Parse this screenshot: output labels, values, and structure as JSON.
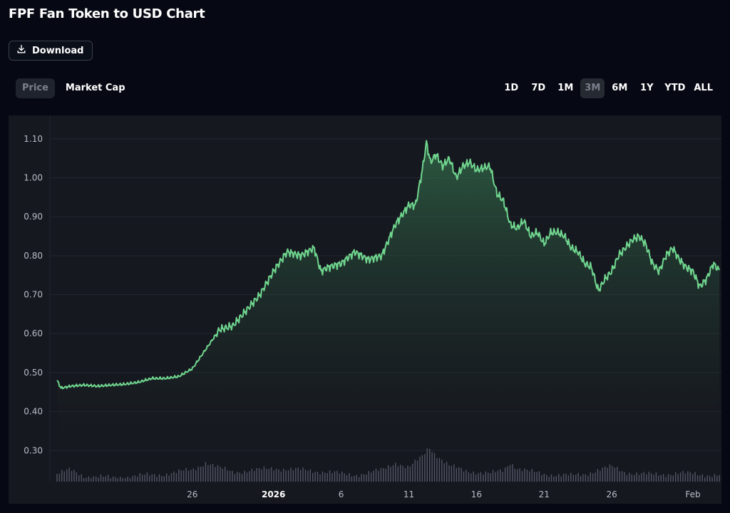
{
  "header": {
    "title": "FPF Fan Token to USD Chart",
    "download_label": "Download"
  },
  "metric_tabs": [
    {
      "label": "Price",
      "active": true
    },
    {
      "label": "Market Cap",
      "active": false
    }
  ],
  "range_tabs": [
    {
      "label": "1D",
      "active": false
    },
    {
      "label": "7D",
      "active": false
    },
    {
      "label": "1M",
      "active": false
    },
    {
      "label": "3M",
      "active": true
    },
    {
      "label": "6M",
      "active": false
    },
    {
      "label": "1Y",
      "active": false
    },
    {
      "label": "YTD",
      "active": false
    },
    {
      "label": "ALL",
      "active": false
    }
  ],
  "colors": {
    "line": "#6fd58e",
    "fill_top": "#3f8f5c",
    "fill_bottom": "#16181f",
    "volume": "#5d6274",
    "grid": "#232630",
    "panel": "#16181f"
  },
  "chart_data": {
    "type": "area",
    "title": "FPF Fan Token to USD Chart",
    "xlabel": "",
    "ylabel": "",
    "ylim": [
      0.22,
      1.16
    ],
    "xlim": [
      0,
      90
    ],
    "grid": true,
    "yticks": [
      "0.30",
      "0.40",
      "0.50",
      "0.60",
      "0.70",
      "0.80",
      "0.90",
      "1.00",
      "1.10"
    ],
    "ytick_values": [
      0.3,
      0.4,
      0.5,
      0.6,
      0.7,
      0.8,
      0.9,
      1.0,
      1.1
    ],
    "xticks": [
      {
        "label": "26",
        "x": 10,
        "bold": false
      },
      {
        "label": "2026",
        "x": 16,
        "bold": true
      },
      {
        "label": "6",
        "x": 21,
        "bold": false
      },
      {
        "label": "11",
        "x": 26,
        "bold": false
      },
      {
        "label": "16",
        "x": 31,
        "bold": false
      },
      {
        "label": "21",
        "x": 36,
        "bold": false
      },
      {
        "label": "26",
        "x": 41,
        "bold": false
      },
      {
        "label": "Feb",
        "x": 47,
        "bold": false
      }
    ],
    "price": [
      [
        0,
        0.48
      ],
      [
        0.3,
        0.46
      ],
      [
        1,
        0.465
      ],
      [
        2,
        0.468
      ],
      [
        3,
        0.465
      ],
      [
        4,
        0.468
      ],
      [
        5,
        0.47
      ],
      [
        6,
        0.475
      ],
      [
        7,
        0.485
      ],
      [
        8,
        0.485
      ],
      [
        9,
        0.49
      ],
      [
        10,
        0.51
      ],
      [
        11,
        0.56
      ],
      [
        12,
        0.61
      ],
      [
        13,
        0.62
      ],
      [
        14,
        0.66
      ],
      [
        15,
        0.7
      ],
      [
        16,
        0.76
      ],
      [
        17,
        0.81
      ],
      [
        18,
        0.8
      ],
      [
        19,
        0.82
      ],
      [
        19.5,
        0.76
      ],
      [
        20,
        0.77
      ],
      [
        21,
        0.78
      ],
      [
        22,
        0.81
      ],
      [
        23,
        0.79
      ],
      [
        24,
        0.8
      ],
      [
        25,
        0.88
      ],
      [
        26,
        0.93
      ],
      [
        26.5,
        0.93
      ],
      [
        27,
        1.02
      ],
      [
        27.3,
        1.09
      ],
      [
        27.6,
        1.04
      ],
      [
        28,
        1.06
      ],
      [
        28.5,
        1.03
      ],
      [
        29,
        1.05
      ],
      [
        29.5,
        1.0
      ],
      [
        30,
        1.03
      ],
      [
        30.5,
        1.04
      ],
      [
        31,
        1.02
      ],
      [
        32,
        1.03
      ],
      [
        32.5,
        0.96
      ],
      [
        33,
        0.94
      ],
      [
        33.5,
        0.88
      ],
      [
        34,
        0.87
      ],
      [
        34.5,
        0.89
      ],
      [
        35,
        0.85
      ],
      [
        35.5,
        0.86
      ],
      [
        36,
        0.83
      ],
      [
        36.5,
        0.86
      ],
      [
        37,
        0.86
      ],
      [
        37.5,
        0.85
      ],
      [
        38,
        0.82
      ],
      [
        38.5,
        0.81
      ],
      [
        39,
        0.78
      ],
      [
        39.5,
        0.77
      ],
      [
        40,
        0.71
      ],
      [
        40.5,
        0.74
      ],
      [
        41,
        0.76
      ],
      [
        41.5,
        0.8
      ],
      [
        42,
        0.82
      ],
      [
        42.5,
        0.84
      ],
      [
        43,
        0.85
      ],
      [
        43.5,
        0.83
      ],
      [
        44,
        0.78
      ],
      [
        44.5,
        0.76
      ],
      [
        45,
        0.8
      ],
      [
        45.5,
        0.82
      ],
      [
        46,
        0.79
      ],
      [
        46.5,
        0.77
      ],
      [
        47,
        0.76
      ],
      [
        47.5,
        0.72
      ],
      [
        48,
        0.74
      ],
      [
        48.5,
        0.78
      ],
      [
        49,
        0.76
      ]
    ],
    "volume": [
      [
        0,
        0.24
      ],
      [
        1,
        0.25
      ],
      [
        2,
        0.235
      ],
      [
        3,
        0.232
      ],
      [
        4,
        0.23
      ],
      [
        5,
        0.232
      ],
      [
        6,
        0.235
      ],
      [
        7,
        0.237
      ],
      [
        8,
        0.24
      ],
      [
        9,
        0.245
      ],
      [
        10,
        0.25
      ],
      [
        11,
        0.27
      ],
      [
        12,
        0.255
      ],
      [
        13,
        0.245
      ],
      [
        14,
        0.248
      ],
      [
        15,
        0.25
      ],
      [
        16,
        0.255
      ],
      [
        17,
        0.252
      ],
      [
        18,
        0.25
      ],
      [
        19,
        0.248
      ],
      [
        20,
        0.245
      ],
      [
        21,
        0.24
      ],
      [
        22,
        0.238
      ],
      [
        23,
        0.242
      ],
      [
        24,
        0.25
      ],
      [
        25,
        0.27
      ],
      [
        26,
        0.255
      ],
      [
        27,
        0.285
      ],
      [
        27.5,
        0.31
      ],
      [
        28,
        0.29
      ],
      [
        29,
        0.26
      ],
      [
        30,
        0.25
      ],
      [
        31,
        0.245
      ],
      [
        32,
        0.24
      ],
      [
        33,
        0.25
      ],
      [
        33.5,
        0.27
      ],
      [
        34,
        0.255
      ],
      [
        35,
        0.245
      ],
      [
        36,
        0.24
      ],
      [
        37,
        0.238
      ],
      [
        38,
        0.235
      ],
      [
        39,
        0.24
      ],
      [
        40,
        0.25
      ],
      [
        41,
        0.258
      ],
      [
        42,
        0.245
      ],
      [
        43,
        0.24
      ],
      [
        44,
        0.238
      ],
      [
        45,
        0.24
      ],
      [
        46,
        0.242
      ],
      [
        47,
        0.24
      ],
      [
        48,
        0.238
      ],
      [
        49,
        0.236
      ]
    ]
  }
}
